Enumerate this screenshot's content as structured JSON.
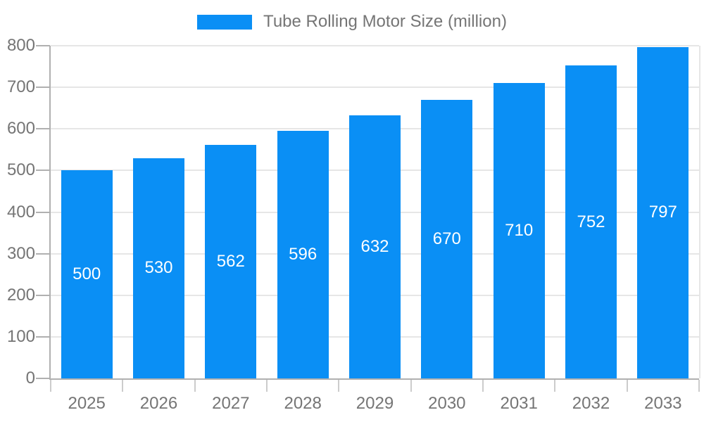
{
  "legend": {
    "label": "Tube Rolling Motor Size (million)"
  },
  "chart_data": {
    "type": "bar",
    "title": "Tube Rolling Motor Size (million)",
    "series_name": "Tube Rolling Motor Size (million)",
    "categories": [
      "2025",
      "2026",
      "2027",
      "2028",
      "2029",
      "2030",
      "2031",
      "2032",
      "2033"
    ],
    "values": [
      500,
      530,
      562,
      596,
      632,
      670,
      710,
      752,
      797
    ],
    "value_labels": [
      "500",
      "530",
      "562",
      "596",
      "632",
      "670",
      "710",
      "752",
      "797"
    ],
    "xlabel": "",
    "ylabel": "",
    "ylim": [
      0,
      800
    ],
    "ytick_interval": 100,
    "yticks": [
      0,
      100,
      200,
      300,
      400,
      500,
      600,
      700,
      800
    ],
    "grid": true,
    "legend_position": "top",
    "bar_color": "#0a8ff5",
    "value_label_color": "#ffffff",
    "axis_text_color": "#757575"
  }
}
